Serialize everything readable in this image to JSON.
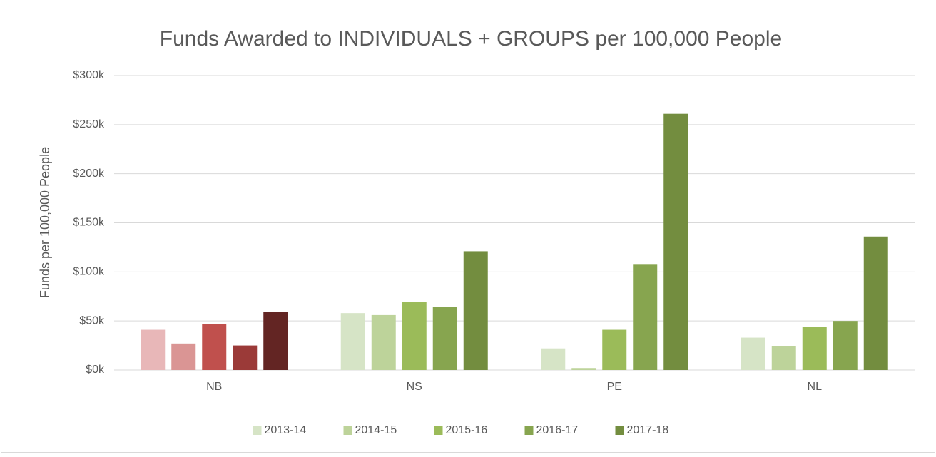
{
  "chart_data": {
    "type": "bar",
    "title": "Funds Awarded to INDIVIDUALS + GROUPS per 100,000 People",
    "y_label": "Funds per 100,000 People",
    "categories": [
      "NB",
      "NS",
      "PE",
      "NL"
    ],
    "series": [
      {
        "name": "2013-14",
        "color": "#d6e4c6",
        "point_colors": [
          "#e8b7b8",
          "#d6e4c6",
          "#d6e4c6",
          "#d6e4c6"
        ],
        "values": [
          41000,
          58000,
          22000,
          33000
        ]
      },
      {
        "name": "2014-15",
        "color": "#bdd39a",
        "point_colors": [
          "#da9594",
          "#bdd39a",
          "#bdd39a",
          "#bdd39a"
        ],
        "values": [
          27000,
          56000,
          2000,
          24000
        ]
      },
      {
        "name": "2015-16",
        "color": "#9bbb59",
        "point_colors": [
          "#c0504d",
          "#9bbb59",
          "#9bbb59",
          "#9bbb59"
        ],
        "values": [
          47000,
          69000,
          41000,
          44000
        ]
      },
      {
        "name": "2016-17",
        "color": "#87a54f",
        "point_colors": [
          "#9b3a38",
          "#87a54f",
          "#87a54f",
          "#87a54f"
        ],
        "values": [
          25000,
          64000,
          108000,
          50000
        ]
      },
      {
        "name": "2017-18",
        "color": "#738d3f",
        "point_colors": [
          "#632523",
          "#738d3f",
          "#738d3f",
          "#738d3f"
        ],
        "values": [
          59000,
          121000,
          261000,
          136000
        ]
      }
    ],
    "ylim": [
      0,
      300000
    ],
    "yticks": [
      {
        "value": 0,
        "label": "$0k"
      },
      {
        "value": 50000,
        "label": "$50k"
      },
      {
        "value": 100000,
        "label": "$100k"
      },
      {
        "value": 150000,
        "label": "$150k"
      },
      {
        "value": 200000,
        "label": "$200k"
      },
      {
        "value": 250000,
        "label": "$250k"
      },
      {
        "value": 300000,
        "label": "$300k"
      }
    ],
    "grid": true,
    "legend": "bottom"
  }
}
